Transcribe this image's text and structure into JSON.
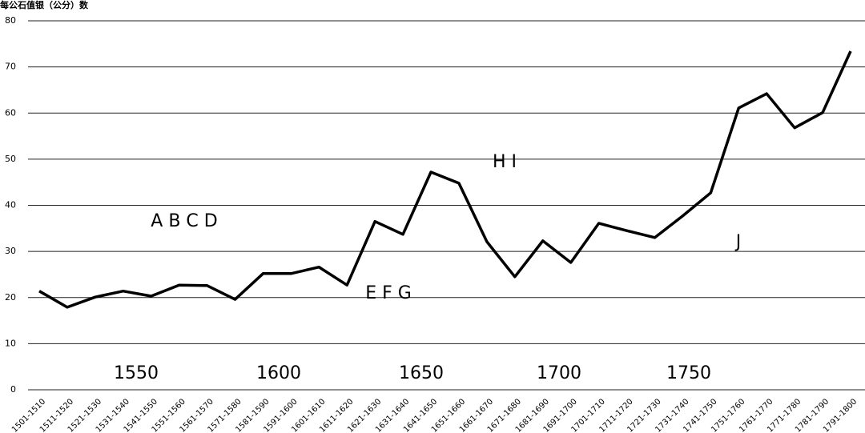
{
  "chart_data": {
    "type": "line",
    "y_axis_title": "每公石值银（公分）数",
    "categories": [
      "1501-1510",
      "1511-1520",
      "1521-1530",
      "1531-1540",
      "1541-1550",
      "1551-1560",
      "1561-1570",
      "1571-1580",
      "1581-1590",
      "1591-1600",
      "1601-1610",
      "1611-1620",
      "1621-1630",
      "1631-1640",
      "1641-1650",
      "1651-1660",
      "1661-1670",
      "1671-1680",
      "1681-1690",
      "1691-1700",
      "1701-1710",
      "1711-1720",
      "1721-1730",
      "1731-1740",
      "1741-1750",
      "1751-1760",
      "1761-1770",
      "1771-1780",
      "1781-1790",
      "1791-1800"
    ],
    "values": [
      21.4,
      17.9,
      20.1,
      21.4,
      20.3,
      22.7,
      22.6,
      19.6,
      25.2,
      25.2,
      26.6,
      22.7,
      36.5,
      33.7,
      47.2,
      44.8,
      32.1,
      24.5,
      32.3,
      27.6,
      36.1,
      34.5,
      33.0,
      37.7,
      42.7,
      61.1,
      64.2,
      56.8,
      60.1,
      73.4
    ],
    "color": "#000000",
    "ylim": [
      0,
      80
    ],
    "yticks": [
      0,
      10,
      20,
      30,
      40,
      50,
      60,
      70,
      80
    ],
    "grid": true,
    "annotations": [
      "1550",
      "1600",
      "1650",
      "1700",
      "1750",
      "A B C D",
      "E F G",
      "H I",
      "J"
    ]
  }
}
